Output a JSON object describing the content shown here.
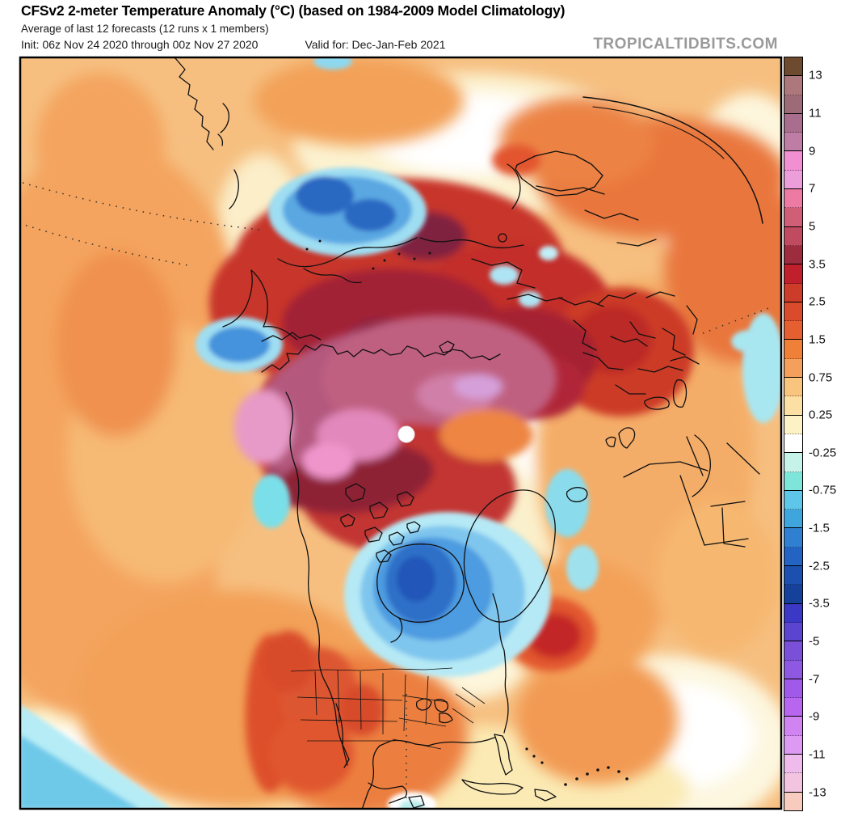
{
  "header": {
    "title": "CFSv2 2-meter Temperature Anomaly (°C) (based on 1984-2009 Model Climatology)",
    "subtitle": "Average of last 12 forecasts (12 runs x 1 members)",
    "init_line": "Init: 06z Nov 24 2020 through 00z Nov 27 2020",
    "valid_line": "Valid for: Dec-Jan-Feb 2021",
    "watermark": "TROPICALTIDBITS.COM"
  },
  "colorbar": {
    "labels": [
      "13",
      "11",
      "9",
      "7",
      "5",
      "3.5",
      "2.5",
      "1.5",
      "0.75",
      "0.25",
      "-0.25",
      "-0.75",
      "-1.5",
      "-2.5",
      "-3.5",
      "-5",
      "-7",
      "-9",
      "-11",
      "-13"
    ],
    "colors": [
      "#6e4b2e",
      "#ad787b",
      "#9d6b77",
      "#a96e8d",
      "#bd7da4",
      "#f28fd2",
      "#eb9ed9",
      "#ec7aa3",
      "#d05e76",
      "#c04b61",
      "#9d2c3e",
      "#bf202b",
      "#cd3c28",
      "#d94b2a",
      "#e65f31",
      "#f08038",
      "#f4a05c",
      "#f8c47e",
      "#fbdfa3",
      "#fdf2c6",
      "#ffffff",
      "#c5f3ea",
      "#7ee5da",
      "#5ec6e8",
      "#3fa5dd",
      "#2f80d0",
      "#2363c4",
      "#1c50ae",
      "#16419a",
      "#3c38c6",
      "#5a44d0",
      "#7b50d8",
      "#8f58e2",
      "#a159e9",
      "#b866f0",
      "#d084f2",
      "#dd9af3",
      "#eebbec",
      "#f2c4df",
      "#f7cbbd"
    ]
  },
  "map": {
    "border_color": "#000000",
    "pole_marker_color": "#ffffff",
    "base_warm_color": "#f6bf80",
    "coldest_region_color": "#2257b8",
    "warmest_region_color": "#7f2040"
  }
}
